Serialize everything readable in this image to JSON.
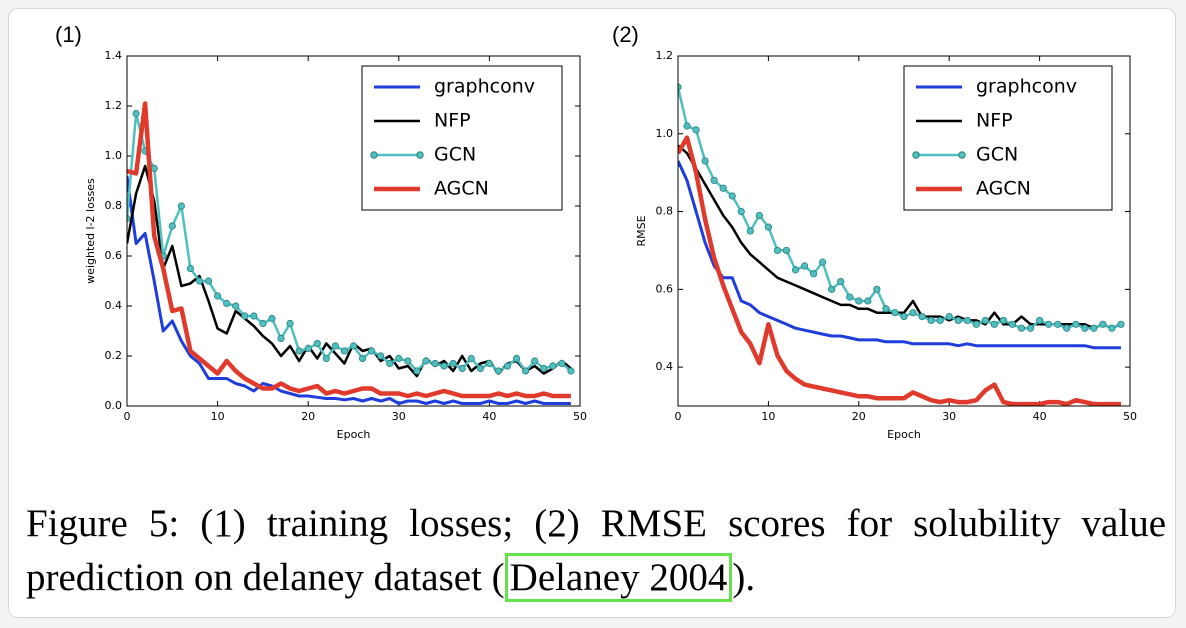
{
  "chart_data": [
    {
      "type": "line",
      "panel": "(1)",
      "xlabel": "Epoch",
      "ylabel": "weighted l-2 losses",
      "x": [
        0,
        1,
        2,
        3,
        4,
        5,
        6,
        7,
        8,
        9,
        10,
        11,
        12,
        13,
        14,
        15,
        16,
        17,
        18,
        19,
        20,
        21,
        22,
        23,
        24,
        25,
        26,
        27,
        28,
        29,
        30,
        31,
        32,
        33,
        34,
        35,
        36,
        37,
        38,
        39,
        40,
        41,
        42,
        43,
        44,
        45,
        46,
        47,
        48,
        49
      ],
      "xlim": [
        0,
        50
      ],
      "xticks": [
        0,
        10,
        20,
        30,
        40,
        50
      ],
      "ylim": [
        0,
        1.4
      ],
      "yticks": [
        {
          "value": 0,
          "label": "0.0"
        },
        0.2,
        0.4,
        0.6,
        0.8,
        {
          "value": 1,
          "label": "1.0"
        },
        1.2,
        1.4
      ],
      "legend": "upper right",
      "series": [
        {
          "name": "graphconv",
          "color": "#1f3ddb",
          "linewidth": 3,
          "values": [
            0.92,
            0.65,
            0.69,
            0.5,
            0.3,
            0.34,
            0.26,
            0.2,
            0.17,
            0.11,
            0.11,
            0.11,
            0.09,
            0.08,
            0.06,
            0.09,
            0.08,
            0.06,
            0.05,
            0.04,
            0.04,
            0.035,
            0.03,
            0.03,
            0.025,
            0.03,
            0.02,
            0.03,
            0.02,
            0.03,
            0.01,
            0.02,
            0.02,
            0.01,
            0.02,
            0.01,
            0.02,
            0.01,
            0.01,
            0.01,
            0.02,
            0.01,
            0.01,
            0.02,
            0.01,
            0.02,
            0.01,
            0.01,
            0.01,
            0.01
          ]
        },
        {
          "name": "NFP",
          "color": "#000000",
          "linewidth": 2.5,
          "values": [
            0.65,
            0.85,
            0.96,
            0.82,
            0.55,
            0.64,
            0.48,
            0.49,
            0.52,
            0.42,
            0.31,
            0.29,
            0.38,
            0.35,
            0.32,
            0.28,
            0.25,
            0.2,
            0.24,
            0.18,
            0.24,
            0.19,
            0.25,
            0.21,
            0.17,
            0.25,
            0.22,
            0.23,
            0.18,
            0.2,
            0.15,
            0.16,
            0.12,
            0.19,
            0.16,
            0.18,
            0.14,
            0.2,
            0.14,
            0.17,
            0.18,
            0.13,
            0.17,
            0.18,
            0.14,
            0.16,
            0.13,
            0.15,
            0.18,
            0.15
          ]
        },
        {
          "name": "GCN",
          "color": "#4fbfbf",
          "linewidth": 2.5,
          "marker": "circle",
          "values": [
            0.75,
            1.17,
            1.02,
            0.95,
            0.6,
            0.72,
            0.8,
            0.55,
            0.5,
            0.5,
            0.44,
            0.41,
            0.4,
            0.36,
            0.36,
            0.33,
            0.35,
            0.27,
            0.33,
            0.22,
            0.23,
            0.25,
            0.19,
            0.24,
            0.22,
            0.24,
            0.19,
            0.22,
            0.2,
            0.17,
            0.19,
            0.18,
            0.14,
            0.18,
            0.17,
            0.16,
            0.17,
            0.15,
            0.19,
            0.15,
            0.17,
            0.14,
            0.16,
            0.19,
            0.14,
            0.18,
            0.15,
            0.16,
            0.17,
            0.14
          ]
        },
        {
          "name": "AGCN",
          "color": "#e03a2c",
          "linewidth": 4.5,
          "values": [
            0.94,
            0.93,
            1.21,
            0.68,
            0.55,
            0.38,
            0.39,
            0.22,
            0.19,
            0.16,
            0.13,
            0.18,
            0.14,
            0.11,
            0.09,
            0.07,
            0.07,
            0.09,
            0.07,
            0.06,
            0.07,
            0.08,
            0.05,
            0.06,
            0.05,
            0.06,
            0.07,
            0.07,
            0.05,
            0.05,
            0.05,
            0.04,
            0.05,
            0.04,
            0.05,
            0.06,
            0.05,
            0.04,
            0.04,
            0.04,
            0.04,
            0.05,
            0.04,
            0.05,
            0.04,
            0.04,
            0.05,
            0.04,
            0.04,
            0.04
          ]
        }
      ]
    },
    {
      "type": "line",
      "panel": "(2)",
      "xlabel": "Epoch",
      "ylabel": "RMSE",
      "x": [
        0,
        1,
        2,
        3,
        4,
        5,
        6,
        7,
        8,
        9,
        10,
        11,
        12,
        13,
        14,
        15,
        16,
        17,
        18,
        19,
        20,
        21,
        22,
        23,
        24,
        25,
        26,
        27,
        28,
        29,
        30,
        31,
        32,
        33,
        34,
        35,
        36,
        37,
        38,
        39,
        40,
        41,
        42,
        43,
        44,
        45,
        46,
        47,
        48,
        49
      ],
      "xlim": [
        0,
        50
      ],
      "xticks": [
        0,
        10,
        20,
        30,
        40,
        50
      ],
      "ylim": [
        0.3,
        1.2
      ],
      "yticks": [
        0.4,
        0.6,
        0.8,
        {
          "value": 1,
          "label": "1.0"
        },
        1.2
      ],
      "legend": "upper right",
      "series": [
        {
          "name": "graphconv",
          "color": "#1f3ddb",
          "linewidth": 3,
          "values": [
            0.93,
            0.88,
            0.8,
            0.72,
            0.66,
            0.63,
            0.63,
            0.57,
            0.56,
            0.54,
            0.53,
            0.52,
            0.51,
            0.5,
            0.495,
            0.49,
            0.485,
            0.48,
            0.48,
            0.475,
            0.47,
            0.47,
            0.47,
            0.465,
            0.465,
            0.465,
            0.46,
            0.46,
            0.46,
            0.46,
            0.46,
            0.455,
            0.46,
            0.455,
            0.455,
            0.455,
            0.455,
            0.455,
            0.455,
            0.455,
            0.455,
            0.455,
            0.455,
            0.455,
            0.455,
            0.455,
            0.45,
            0.45,
            0.45,
            0.45
          ]
        },
        {
          "name": "NFP",
          "color": "#000000",
          "linewidth": 2.5,
          "values": [
            0.97,
            0.95,
            0.91,
            0.87,
            0.83,
            0.79,
            0.76,
            0.72,
            0.69,
            0.67,
            0.65,
            0.63,
            0.62,
            0.61,
            0.6,
            0.59,
            0.58,
            0.57,
            0.56,
            0.56,
            0.55,
            0.55,
            0.54,
            0.54,
            0.54,
            0.54,
            0.57,
            0.53,
            0.53,
            0.53,
            0.52,
            0.53,
            0.52,
            0.52,
            0.51,
            0.54,
            0.51,
            0.51,
            0.53,
            0.51,
            0.51,
            0.51,
            0.51,
            0.51,
            0.51,
            0.51,
            0.5,
            0.51,
            0.5,
            0.51
          ]
        },
        {
          "name": "GCN",
          "color": "#4fbfbf",
          "linewidth": 2.5,
          "marker": "circle",
          "values": [
            1.12,
            1.02,
            1.01,
            0.93,
            0.88,
            0.86,
            0.84,
            0.8,
            0.75,
            0.79,
            0.76,
            0.7,
            0.7,
            0.65,
            0.66,
            0.64,
            0.67,
            0.6,
            0.62,
            0.58,
            0.57,
            0.57,
            0.6,
            0.55,
            0.54,
            0.53,
            0.54,
            0.53,
            0.52,
            0.52,
            0.53,
            0.52,
            0.52,
            0.51,
            0.52,
            0.51,
            0.52,
            0.51,
            0.5,
            0.5,
            0.52,
            0.51,
            0.51,
            0.5,
            0.51,
            0.5,
            0.5,
            0.51,
            0.5,
            0.51
          ]
        },
        {
          "name": "AGCN",
          "color": "#e03a2c",
          "linewidth": 4.5,
          "values": [
            0.95,
            0.99,
            0.9,
            0.78,
            0.68,
            0.61,
            0.55,
            0.49,
            0.46,
            0.41,
            0.51,
            0.43,
            0.39,
            0.37,
            0.355,
            0.35,
            0.345,
            0.34,
            0.335,
            0.33,
            0.325,
            0.325,
            0.32,
            0.32,
            0.32,
            0.32,
            0.335,
            0.325,
            0.315,
            0.31,
            0.315,
            0.31,
            0.31,
            0.315,
            0.34,
            0.355,
            0.31,
            0.305,
            0.305,
            0.305,
            0.305,
            0.31,
            0.31,
            0.305,
            0.315,
            0.31,
            0.305,
            0.305,
            0.305,
            0.305
          ]
        }
      ]
    }
  ],
  "caption": {
    "text": "Figure 5: (1) training losses; (2) RMSE scores for solubility value prediction on delaney dataset (",
    "citation": "Delaney 2004",
    "closing": ")."
  }
}
